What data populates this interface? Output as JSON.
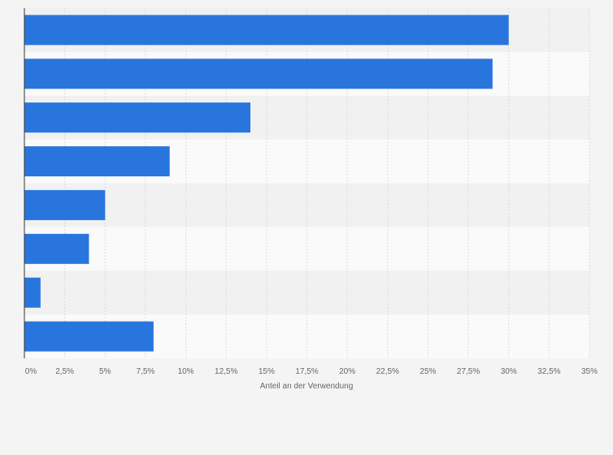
{
  "chart_data": {
    "type": "bar",
    "orientation": "horizontal",
    "categories": [
      "",
      "",
      "",
      "",
      "",
      "",
      "",
      ""
    ],
    "values": [
      30,
      29,
      14,
      9,
      5,
      4,
      1,
      8
    ],
    "xlabel": "Anteil an der Verwendung",
    "ylabel": "",
    "xlim": [
      0,
      35
    ],
    "x_ticks": [
      0,
      2.5,
      5,
      7.5,
      10,
      12.5,
      15,
      17.5,
      20,
      22.5,
      25,
      27.5,
      30,
      32.5,
      35
    ],
    "x_tick_labels": [
      "0%",
      "2,5%",
      "5%",
      "7,5%",
      "10%",
      "12,5%",
      "15%",
      "17,5%",
      "20%",
      "22,5%",
      "25%",
      "27,5%",
      "30%",
      "32,5%",
      "35%"
    ],
    "grid": true,
    "legend": "none",
    "colors": {
      "bar": "#2876dd",
      "band_dark": "#f1f1f1",
      "band_light": "#fafafa",
      "grid": "#dcdcdc",
      "axis": "#333333",
      "text": "#666666"
    }
  }
}
